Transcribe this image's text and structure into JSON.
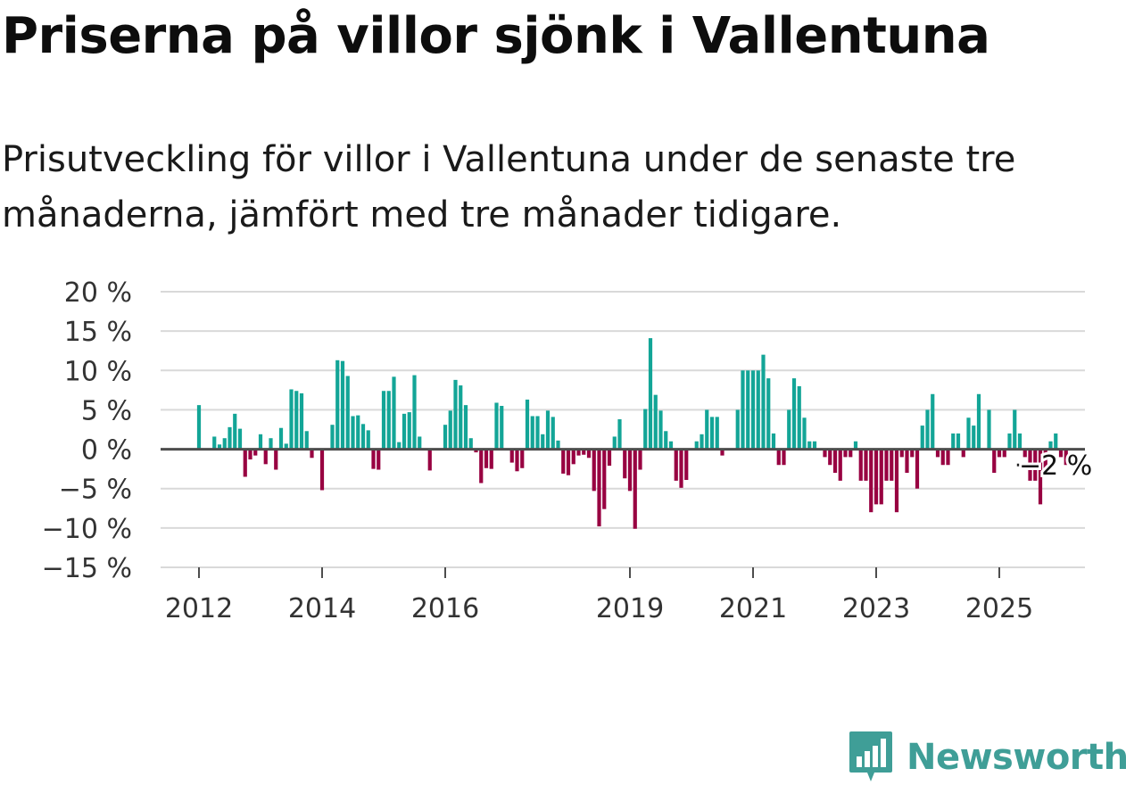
{
  "title": "Priserna på villor sjönk i Vallentuna",
  "subtitle": "Prisutveckling för villor i Vallentuna under de senaste tre månaderna, jämfört med tre månader tidigare.",
  "colors": {
    "positive": "#13a597",
    "negative": "#980041",
    "grid": "#d9d9d9",
    "zero": "#4d4d4d",
    "text": "#333333"
  },
  "brand": {
    "name": "Newsworthy",
    "icon": "newsworthy-logo-icon"
  },
  "chart_data": {
    "type": "bar",
    "title": "Priserna på villor sjönk i Vallentuna",
    "xlabel": "",
    "ylabel": "",
    "ylim": [
      -15,
      20
    ],
    "y_ticks": [
      {
        "value": 20,
        "label": "20 %"
      },
      {
        "value": 15,
        "label": "15 %"
      },
      {
        "value": 10,
        "label": "10 %"
      },
      {
        "value": 5,
        "label": "5 %"
      },
      {
        "value": 0,
        "label": "0 %"
      },
      {
        "value": -5,
        "label": "−5 %"
      },
      {
        "value": -10,
        "label": "−10 %"
      },
      {
        "value": -15,
        "label": "−15 %"
      }
    ],
    "x_ticks": [
      {
        "month_index": 0,
        "label": "2012"
      },
      {
        "month_index": 24,
        "label": "2014"
      },
      {
        "month_index": 48,
        "label": "2016"
      },
      {
        "month_index": 84,
        "label": "2019"
      },
      {
        "month_index": 108,
        "label": "2021"
      },
      {
        "month_index": 132,
        "label": "2023"
      },
      {
        "month_index": 156,
        "label": "2025"
      }
    ],
    "start": "2012-01",
    "values": [
      5.6,
      0,
      0,
      1.6,
      0.6,
      1.4,
      2.8,
      4.5,
      2.6,
      -3.5,
      -1.3,
      -0.8,
      1.9,
      -1.9,
      1.4,
      -2.6,
      2.7,
      0.7,
      7.6,
      7.4,
      7.1,
      2.3,
      -1.1,
      0,
      -5.2,
      0,
      3.1,
      11.3,
      11.2,
      9.3,
      4.2,
      4.3,
      3.2,
      2.4,
      -2.5,
      -2.6,
      7.4,
      7.4,
      9.2,
      0.9,
      4.5,
      4.7,
      9.4,
      1.6,
      0,
      -2.7,
      0,
      0,
      3.1,
      4.9,
      8.8,
      8.1,
      5.6,
      1.4,
      -0.4,
      -4.3,
      -2.4,
      -2.5,
      5.9,
      5.5,
      0,
      -1.7,
      -2.8,
      -2.4,
      6.3,
      4.2,
      4.2,
      1.9,
      4.9,
      4.1,
      1.1,
      -3.1,
      -3.3,
      -1.9,
      -0.8,
      -0.7,
      -1.1,
      -5.3,
      -9.8,
      -7.6,
      -2.1,
      1.6,
      3.8,
      -3.7,
      -5.3,
      -10.1,
      -2.6,
      5.1,
      14.1,
      6.9,
      4.9,
      2.3,
      1.0,
      -4.0,
      -4.9,
      -3.9,
      0.1,
      1.0,
      1.9,
      5.0,
      4.1,
      4.1,
      -0.8,
      0,
      0,
      5.0,
      10.0,
      10.0,
      10.0,
      10.0,
      12.0,
      9.0,
      2.0,
      -2.0,
      -2.0,
      5.0,
      9.0,
      8.0,
      4.0,
      1.0,
      1.0,
      0,
      -1.0,
      -2.0,
      -3.0,
      -4.0,
      -1.0,
      -1.0,
      1.0,
      -4.0,
      -4.0,
      -8.0,
      -7.0,
      -7.0,
      -4.0,
      -4.0,
      -8.0,
      -1.0,
      -3.0,
      -1.0,
      -5.0,
      3.0,
      5.0,
      7.0,
      -1.0,
      -2.0,
      -2.0,
      2.0,
      2.0,
      -1.0,
      4.0,
      3.0,
      7.0,
      0,
      5.0,
      -3.0,
      -1.0,
      -1.0,
      2.0,
      5.0,
      2.0,
      -1.0,
      -4.0,
      -4.0,
      -7.0,
      -3.0,
      1.0,
      2.0,
      -1.0,
      -2.0
    ],
    "highlight_marker_index": 160,
    "annotation": {
      "text": "−2 %",
      "value": -2
    }
  }
}
